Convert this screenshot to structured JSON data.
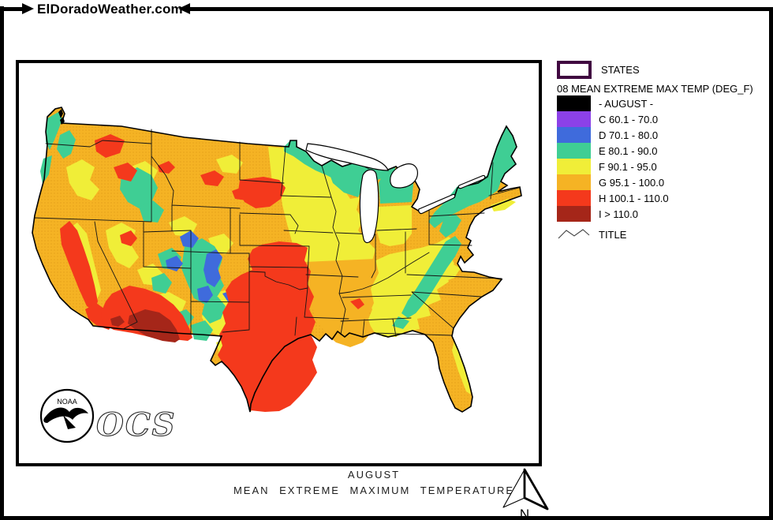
{
  "header": {
    "site_name": "ElDoradoWeather.com"
  },
  "legend": {
    "states_label": "STATES",
    "states_swatch_border_color": "#400840",
    "heading": "08 MEAN EXTREME MAX TEMP (DEG_F)",
    "classes": [
      {
        "code": "",
        "label": "- AUGUST -",
        "color": "#000000"
      },
      {
        "code": "C",
        "label": "C 60.1 - 70.0",
        "color": "#8C41E8"
      },
      {
        "code": "D",
        "label": "D 70.1 - 80.0",
        "color": "#3F6BDC"
      },
      {
        "code": "E",
        "label": "E 80.1 - 90.0",
        "color": "#3FCE94"
      },
      {
        "code": "F",
        "label": "F 90.1 - 95.0",
        "color": "#F0EE38"
      },
      {
        "code": "G",
        "label": "G 95.1 - 100.0",
        "color": "#F5B324"
      },
      {
        "code": "H",
        "label": "H 100.1 - 110.0",
        "color": "#F4391C"
      },
      {
        "code": "I",
        "label": "I > 110.0",
        "color": "#A52619"
      }
    ],
    "title_item_label": "TITLE"
  },
  "map": {
    "caption_line1": "AUGUST",
    "caption_line2": "MEAN EXTREME MAXIMUM TEMPERATURE",
    "noaa_logo_text": "NOAA",
    "ocs_text": "OCS"
  },
  "compass": {
    "north_label": "N"
  }
}
